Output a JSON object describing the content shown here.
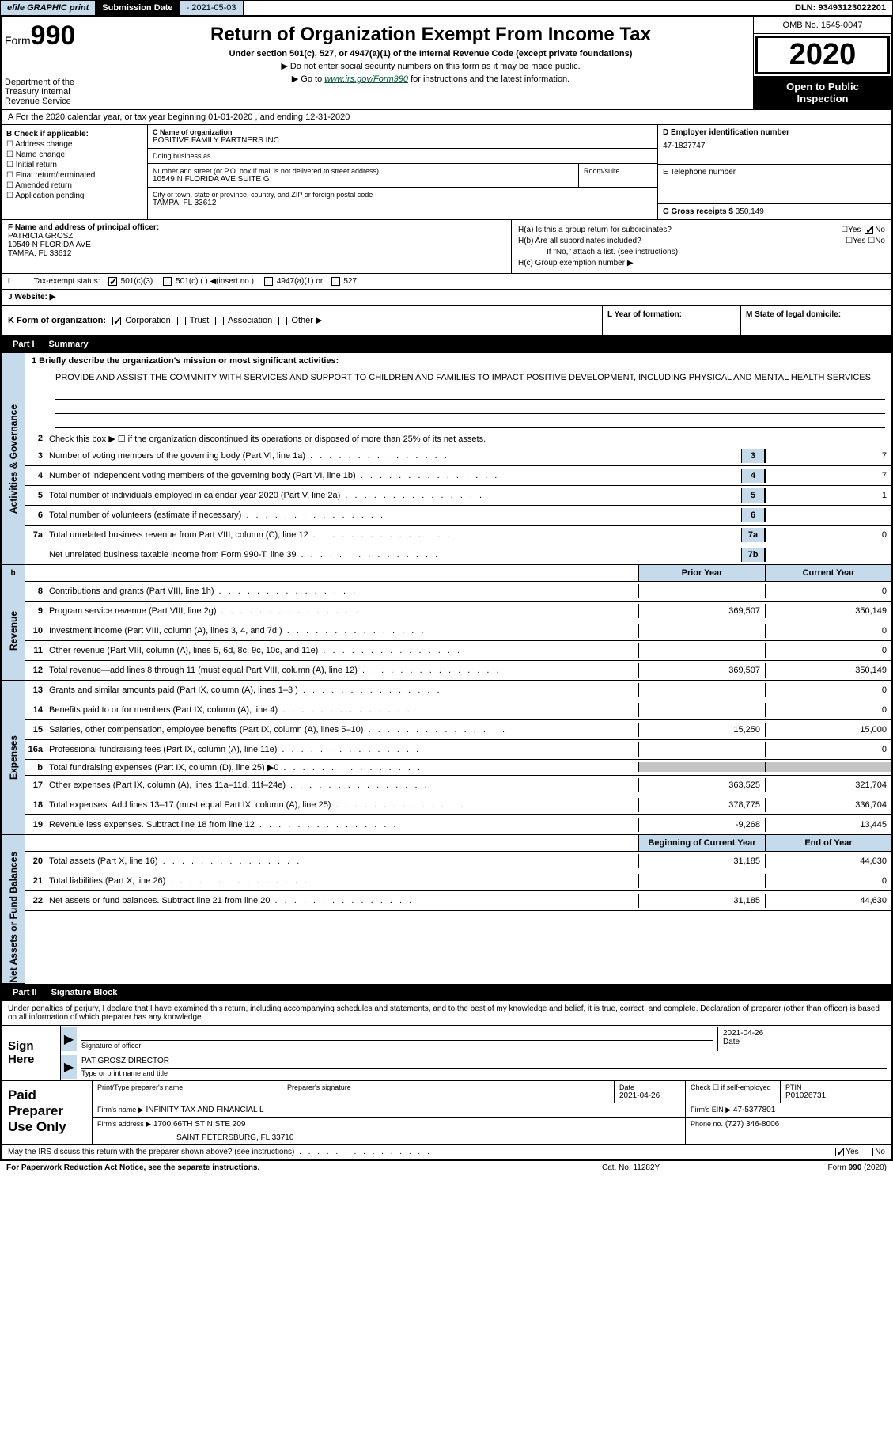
{
  "top_bar": {
    "efile": "efile GRAPHIC print",
    "subdate_label": "Submission Date",
    "subdate": "- 2021-05-03",
    "dln": "DLN: 93493123022201"
  },
  "header": {
    "form_label": "Form",
    "form_num": "990",
    "dept": "Department of the Treasury Internal Revenue Service",
    "title": "Return of Organization Exempt From Income Tax",
    "subtitle": "Under section 501(c), 527, or 4947(a)(1) of the Internal Revenue Code (except private foundations)",
    "note1": "▶ Do not enter social security numbers on this form as it may be made public.",
    "note2_pre": "▶ Go to ",
    "note2_link": "www.irs.gov/Form990",
    "note2_post": " for instructions and the latest information.",
    "omb": "OMB No. 1545-0047",
    "year": "2020",
    "public1": "Open to Public",
    "public2": "Inspection"
  },
  "line_a": "A For the 2020 calendar year, or tax year beginning 01-01-2020     , and ending 12-31-2020",
  "box_b": {
    "header": "B Check if applicable:",
    "items": [
      "Address change",
      "Name change",
      "Initial return",
      "Final return/terminated",
      "Amended return",
      "Application pending"
    ]
  },
  "box_c": {
    "name_label": "C Name of organization",
    "name": "POSITIVE FAMILY PARTNERS INC",
    "dba_label": "Doing business as",
    "dba": "",
    "street_label": "Number and street (or P.O. box if mail is not delivered to street address)",
    "street": "10549 N FLORIDA AVE SUITE G",
    "suite_label": "Room/suite",
    "city_label": "City or town, state or province, country, and ZIP or foreign postal code",
    "city": "TAMPA, FL  33612"
  },
  "box_d": {
    "label": "D Employer identification number",
    "value": "47-1827747"
  },
  "box_e": {
    "label": "E Telephone number",
    "value": ""
  },
  "box_g": {
    "label": "G Gross receipts $",
    "value": "350,149"
  },
  "box_f": {
    "label": "F  Name and address of principal officer:",
    "name": "PATRICIA GROSZ",
    "street": "10549 N FLORIDA AVE",
    "city": "TAMPA, FL  33612"
  },
  "box_h": {
    "ha_label": "H(a)  Is this a group return for subordinates?",
    "ha_no": "No",
    "hb_label": "H(b)  Are all subordinates included?",
    "hb_note": "If \"No,\" attach a list. (see instructions)",
    "hc_label": "H(c)  Group exemption number ▶"
  },
  "yes": "Yes",
  "no": "No",
  "tax_status_label": "Tax-exempt status:",
  "tax_status_501c3": "501(c)(3)",
  "tax_status_501c": "501(c) (  ) ◀(insert no.)",
  "tax_status_4947": "4947(a)(1) or",
  "tax_status_527": "527",
  "website_label": "J   Website: ▶",
  "line_k": "K Form of organization:",
  "k_corp": "Corporation",
  "k_trust": "Trust",
  "k_assoc": "Association",
  "k_other": "Other ▶",
  "line_l": "L Year of formation:",
  "line_m": "M State of legal domicile:",
  "parts": {
    "p1": {
      "num": "Part I",
      "title": "Summary"
    },
    "p2": {
      "num": "Part II",
      "title": "Signature Block"
    }
  },
  "vtabs": {
    "ag": "Activities & Governance",
    "rev": "Revenue",
    "exp": "Expenses",
    "na": "Net Assets or Fund Balances"
  },
  "summary": {
    "l1_label": "1  Briefly describe the organization's mission or most significant activities:",
    "mission": "PROVIDE AND ASSIST THE COMMNITY WITH SERVICES AND SUPPORT TO CHILDREN AND FAMILIES TO IMPACT POSITIVE DEVELOPMENT, INCLUDING PHYSICAL AND MENTAL HEALTH SERVICES",
    "l2": "Check this box ▶ ☐  if the organization discontinued its operations or disposed of more than 25% of its net assets.",
    "lines_single": [
      {
        "n": "3",
        "t": "Number of voting members of the governing body (Part VI, line 1a)",
        "box": "3",
        "v": "7"
      },
      {
        "n": "4",
        "t": "Number of independent voting members of the governing body (Part VI, line 1b)",
        "box": "4",
        "v": "7"
      },
      {
        "n": "5",
        "t": "Total number of individuals employed in calendar year 2020 (Part V, line 2a)",
        "box": "5",
        "v": "1"
      },
      {
        "n": "6",
        "t": "Total number of volunteers (estimate if necessary)",
        "box": "6",
        "v": ""
      },
      {
        "n": "7a",
        "t": "Total unrelated business revenue from Part VIII, column (C), line 12",
        "box": "7a",
        "v": "0"
      },
      {
        "n": "",
        "t": "Net unrelated business taxable income from Form 990-T, line 39",
        "box": "7b",
        "v": ""
      }
    ],
    "hdr_prior": "Prior Year",
    "hdr_current": "Current Year",
    "revenue_lines": [
      {
        "n": "8",
        "t": "Contributions and grants (Part VIII, line 1h)",
        "p": "",
        "c": "0"
      },
      {
        "n": "9",
        "t": "Program service revenue (Part VIII, line 2g)",
        "p": "369,507",
        "c": "350,149"
      },
      {
        "n": "10",
        "t": "Investment income (Part VIII, column (A), lines 3, 4, and 7d )",
        "p": "",
        "c": "0"
      },
      {
        "n": "11",
        "t": "Other revenue (Part VIII, column (A), lines 5, 6d, 8c, 9c, 10c, and 11e)",
        "p": "",
        "c": "0"
      },
      {
        "n": "12",
        "t": "Total revenue—add lines 8 through 11 (must equal Part VIII, column (A), line 12)",
        "p": "369,507",
        "c": "350,149"
      }
    ],
    "expense_lines": [
      {
        "n": "13",
        "t": "Grants and similar amounts paid (Part IX, column (A), lines 1–3 )",
        "p": "",
        "c": "0"
      },
      {
        "n": "14",
        "t": "Benefits paid to or for members (Part IX, column (A), line 4)",
        "p": "",
        "c": "0"
      },
      {
        "n": "15",
        "t": "Salaries, other compensation, employee benefits (Part IX, column (A), lines 5–10)",
        "p": "15,250",
        "c": "15,000"
      },
      {
        "n": "16a",
        "t": "Professional fundraising fees (Part IX, column (A), line 11e)",
        "p": "",
        "c": "0"
      },
      {
        "n": "b",
        "t": "Total fundraising expenses (Part IX, column (D), line 25) ▶0",
        "p": "GRAY",
        "c": "GRAY"
      },
      {
        "n": "17",
        "t": "Other expenses (Part IX, column (A), lines 11a–11d, 11f–24e)",
        "p": "363,525",
        "c": "321,704"
      },
      {
        "n": "18",
        "t": "Total expenses. Add lines 13–17 (must equal Part IX, column (A), line 25)",
        "p": "378,775",
        "c": "336,704"
      },
      {
        "n": "19",
        "t": "Revenue less expenses. Subtract line 18 from line 12",
        "p": "-9,268",
        "c": "13,445"
      }
    ],
    "hdr_begin": "Beginning of Current Year",
    "hdr_end": "End of Year",
    "na_lines": [
      {
        "n": "20",
        "t": "Total assets (Part X, line 16)",
        "p": "31,185",
        "c": "44,630"
      },
      {
        "n": "21",
        "t": "Total liabilities (Part X, line 26)",
        "p": "",
        "c": "0"
      },
      {
        "n": "22",
        "t": "Net assets or fund balances. Subtract line 21 from line 20",
        "p": "31,185",
        "c": "44,630"
      }
    ]
  },
  "sig": {
    "penalties": "Under penalties of perjury, I declare that I have examined this return, including accompanying schedules and statements, and to the best of my knowledge and belief, it is true, correct, and complete. Declaration of preparer (other than officer) is based on all information of which preparer has any knowledge.",
    "sign_here": "Sign Here",
    "sig_officer_label": "Signature of officer",
    "date_label": "Date",
    "date_val": "2021-04-26",
    "name_title": "PAT GROSZ  DIRECTOR",
    "name_title_label": "Type or print name and title",
    "paid_label": "Paid Preparer Use Only",
    "prep_name_label": "Print/Type preparer's name",
    "prep_sig_label": "Preparer's signature",
    "prep_date_label": "Date",
    "prep_date": "2021-04-26",
    "check_if_label": "Check ☐ if self-employed",
    "ptin_label": "PTIN",
    "ptin": "P01026731",
    "firm_name_label": "Firm's name     ▶",
    "firm_name": "INFINITY TAX AND FINANCIAL L",
    "firm_ein_label": "Firm's EIN ▶",
    "firm_ein": "47-5377801",
    "firm_addr_label": "Firm's address ▶",
    "firm_addr1": "1700 66TH ST N STE 209",
    "firm_addr2": "SAINT PETERSBURG, FL  33710",
    "phone_label": "Phone no.",
    "phone": "(727) 346-8006"
  },
  "may_irs": "May the IRS discuss this return with the preparer shown above? (see instructions)",
  "footer": {
    "left": "For Paperwork Reduction Act Notice, see the separate instructions.",
    "mid": "Cat. No. 11282Y",
    "right_pre": "Form ",
    "right_bold": "990",
    "right_post": " (2020)"
  },
  "colors": {
    "blue_bg": "#c5daea",
    "black": "#000000",
    "link": "#005238"
  }
}
